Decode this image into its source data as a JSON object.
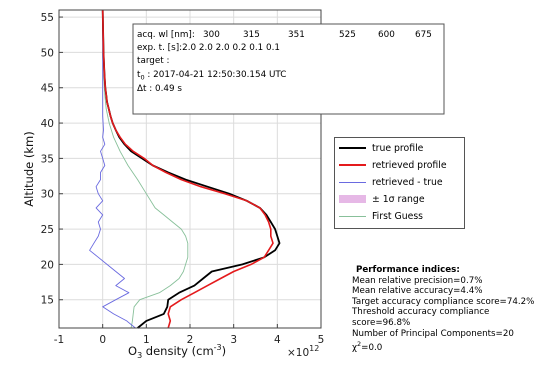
{
  "chart_data": {
    "type": "line",
    "xlabel": "O$_3$ density (cm$^{-3}$)",
    "xlabel_main": "O",
    "xlabel_sub": "3",
    "xlabel_rest": " density (cm",
    "xlabel_sup": "-3",
    "xlabel_end": ")",
    "x_multiplier": "×10",
    "x_multiplier_exp": "12",
    "ylabel": "Altitude (km)",
    "xlim": [
      -1,
      5
    ],
    "ylim": [
      11,
      56
    ],
    "x_ticks": [
      "-1",
      "0",
      "1",
      "2",
      "3",
      "4",
      "5"
    ],
    "y_ticks": [
      "15",
      "20",
      "25",
      "30",
      "35",
      "40",
      "45",
      "50",
      "55"
    ],
    "grid": true,
    "legend_position": "right",
    "series": [
      {
        "name": "true profile",
        "color": "#000000",
        "points": [
          [
            0.8,
            11
          ],
          [
            1.0,
            12
          ],
          [
            1.4,
            13
          ],
          [
            1.48,
            14
          ],
          [
            1.5,
            15
          ],
          [
            1.75,
            16
          ],
          [
            2.1,
            17
          ],
          [
            2.3,
            18
          ],
          [
            2.5,
            19
          ],
          [
            3.2,
            20
          ],
          [
            3.7,
            21
          ],
          [
            3.95,
            22
          ],
          [
            4.05,
            23
          ],
          [
            4.0,
            24
          ],
          [
            3.95,
            25
          ],
          [
            3.85,
            26
          ],
          [
            3.75,
            27
          ],
          [
            3.6,
            28
          ],
          [
            3.3,
            29
          ],
          [
            2.9,
            30
          ],
          [
            2.4,
            31
          ],
          [
            1.9,
            32
          ],
          [
            1.5,
            33
          ],
          [
            1.15,
            34
          ],
          [
            0.9,
            35
          ],
          [
            0.65,
            36
          ],
          [
            0.5,
            37
          ],
          [
            0.38,
            38
          ],
          [
            0.3,
            39
          ],
          [
            0.23,
            40
          ],
          [
            0.18,
            41
          ],
          [
            0.14,
            42
          ],
          [
            0.1,
            43
          ],
          [
            0.08,
            44
          ],
          [
            0.06,
            45
          ],
          [
            0.04,
            47
          ],
          [
            0.02,
            50
          ],
          [
            0.01,
            53
          ],
          [
            0.0,
            56
          ]
        ]
      },
      {
        "name": "retrieved profile",
        "color": "#e41a1c",
        "points": [
          [
            1.5,
            11
          ],
          [
            1.55,
            12
          ],
          [
            1.5,
            13
          ],
          [
            1.55,
            14
          ],
          [
            1.8,
            15
          ],
          [
            2.1,
            16
          ],
          [
            2.4,
            17
          ],
          [
            2.7,
            18
          ],
          [
            3.0,
            19
          ],
          [
            3.4,
            20
          ],
          [
            3.7,
            21
          ],
          [
            3.8,
            22
          ],
          [
            3.9,
            23
          ],
          [
            3.85,
            24
          ],
          [
            3.85,
            25
          ],
          [
            3.8,
            26
          ],
          [
            3.72,
            27
          ],
          [
            3.6,
            28
          ],
          [
            3.3,
            29
          ],
          [
            2.8,
            30
          ],
          [
            2.25,
            31
          ],
          [
            1.8,
            32
          ],
          [
            1.45,
            33
          ],
          [
            1.15,
            34
          ],
          [
            0.95,
            35
          ],
          [
            0.7,
            36
          ],
          [
            0.52,
            37
          ],
          [
            0.4,
            38
          ],
          [
            0.3,
            39
          ],
          [
            0.23,
            40
          ],
          [
            0.18,
            41
          ],
          [
            0.14,
            42
          ],
          [
            0.1,
            43
          ],
          [
            0.08,
            44
          ],
          [
            0.06,
            45
          ],
          [
            0.04,
            47
          ],
          [
            0.02,
            50
          ],
          [
            0.01,
            53
          ],
          [
            0.0,
            56
          ]
        ]
      },
      {
        "name": "retrieved - true",
        "color": "#6a6ae0",
        "points": [
          [
            0.75,
            11
          ],
          [
            0.55,
            12
          ],
          [
            0.25,
            13
          ],
          [
            0.0,
            14
          ],
          [
            0.3,
            15
          ],
          [
            0.6,
            16
          ],
          [
            0.3,
            17
          ],
          [
            0.5,
            18
          ],
          [
            0.3,
            19
          ],
          [
            0.1,
            20
          ],
          [
            -0.1,
            21
          ],
          [
            -0.3,
            22
          ],
          [
            -0.2,
            23
          ],
          [
            -0.1,
            24
          ],
          [
            -0.05,
            25
          ],
          [
            -0.1,
            26
          ],
          [
            0.0,
            27
          ],
          [
            -0.15,
            28
          ],
          [
            0.0,
            29
          ],
          [
            -0.1,
            30
          ],
          [
            -0.15,
            31
          ],
          [
            -0.05,
            32
          ],
          [
            -0.05,
            33
          ],
          [
            0.05,
            34
          ],
          [
            0.0,
            35
          ],
          [
            -0.05,
            36
          ],
          [
            0.05,
            37
          ],
          [
            0.0,
            38
          ],
          [
            0.02,
            39
          ],
          [
            0.0,
            41
          ],
          [
            0.0,
            45
          ],
          [
            0.0,
            50
          ],
          [
            0.0,
            56
          ]
        ]
      },
      {
        "name": "First Guess",
        "color": "#88c09a",
        "points": [
          [
            0.65,
            11
          ],
          [
            0.68,
            12
          ],
          [
            0.7,
            13
          ],
          [
            0.72,
            14
          ],
          [
            0.85,
            15
          ],
          [
            1.3,
            16
          ],
          [
            1.55,
            17
          ],
          [
            1.75,
            18
          ],
          [
            1.85,
            19
          ],
          [
            1.9,
            20
          ],
          [
            1.95,
            21
          ],
          [
            1.95,
            22
          ],
          [
            1.95,
            23
          ],
          [
            1.9,
            24
          ],
          [
            1.8,
            25
          ],
          [
            1.6,
            26
          ],
          [
            1.4,
            27
          ],
          [
            1.2,
            28
          ],
          [
            1.0,
            30
          ],
          [
            0.8,
            32
          ],
          [
            0.58,
            34
          ],
          [
            0.4,
            36
          ],
          [
            0.25,
            38
          ],
          [
            0.15,
            40
          ],
          [
            0.08,
            42
          ],
          [
            0.05,
            44
          ],
          [
            0.03,
            46
          ],
          [
            0.02,
            48
          ],
          [
            0.01,
            50
          ],
          [
            0.0,
            56
          ]
        ]
      }
    ],
    "range_band": {
      "name": "± 1σ range",
      "color": "#e6b8e6"
    }
  },
  "info_box": {
    "line1_label": "acq. wl [nm]: ",
    "wavelengths": [
      "300",
      "315",
      "351",
      "525",
      "600",
      "675"
    ],
    "line2": "exp. t. [s]:2.0 2.0 2.0 0.2 0.1 0.1",
    "line3": "target :",
    "line4_t": "t",
    "line4_sub": "0",
    "line4_rest": " : 2017-04-21 12:50:30.154 UTC",
    "line5": "Δt : 0.49 s"
  },
  "legend": {
    "items": [
      {
        "label": "true profile",
        "color": "#000000",
        "kind": "line",
        "thick": 2
      },
      {
        "label": "retrieved profile",
        "color": "#e41a1c",
        "kind": "line",
        "thick": 2
      },
      {
        "label": "retrieved - true",
        "color": "#6a6ae0",
        "kind": "line",
        "thick": 1
      },
      {
        "label": "± 1σ range",
        "color": "#e6b8e6",
        "kind": "patch",
        "thick": 0
      },
      {
        "label": "First Guess",
        "color": "#88c09a",
        "kind": "line",
        "thick": 1
      }
    ]
  },
  "performance": {
    "title": "Performance indices:",
    "lines": [
      "Mean relative precision=0.7%",
      "Mean relative accuracy=4.4%",
      "Target accuracy compliance score=74.2%",
      "Threshold accuracy compliance score=96.8%",
      "Number of Principal Components=20"
    ],
    "chi_label": "χ",
    "chi_sup": "2",
    "chi_value": "=0.0"
  }
}
